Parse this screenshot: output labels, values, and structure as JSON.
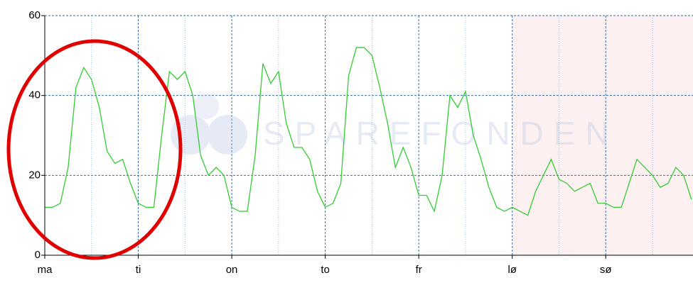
{
  "chart_data": {
    "type": "line",
    "watermark": "SPAREFONDEN",
    "x": [
      0,
      2,
      4,
      6,
      8,
      10,
      12,
      14,
      16,
      18,
      20,
      22,
      24,
      26,
      28,
      30,
      32,
      34,
      36,
      38,
      40,
      42,
      44,
      46,
      48,
      50,
      52,
      54,
      56,
      58,
      60,
      62,
      64,
      66,
      68,
      70,
      72,
      74,
      76,
      78,
      80,
      82,
      84,
      86,
      88,
      90,
      92,
      94,
      96,
      98,
      100,
      102,
      104,
      106,
      108,
      110,
      112,
      114,
      116,
      118,
      120,
      122,
      124,
      126,
      128,
      130,
      132,
      134,
      136,
      138,
      140,
      142,
      144,
      146,
      148,
      150,
      152,
      154,
      156,
      158,
      160,
      162,
      164,
      166
    ],
    "series": [
      {
        "color": "#33cc33",
        "values": [
          12,
          12,
          13,
          22,
          42,
          47,
          44,
          37,
          26,
          23,
          24,
          18,
          13,
          12,
          12,
          30,
          46,
          44,
          46,
          40,
          25,
          20,
          22,
          20,
          12,
          11,
          11,
          25,
          48,
          43,
          46,
          33,
          27,
          27,
          24,
          16,
          12,
          13,
          18,
          45,
          52,
          52,
          50,
          42,
          33,
          22,
          27,
          22,
          15,
          15,
          11,
          20,
          40,
          37,
          41,
          30,
          24,
          17,
          12,
          11,
          12,
          11,
          10,
          16,
          20,
          24,
          19,
          18,
          16,
          17,
          18,
          13,
          13,
          12,
          12,
          18,
          24,
          22,
          20,
          17,
          18,
          22,
          20,
          14
        ]
      }
    ],
    "xlim": [
      0,
      166.4
    ],
    "xticks": [
      {
        "value": 0,
        "label": "ma"
      },
      {
        "value": 24,
        "label": "ti"
      },
      {
        "value": 48,
        "label": "on"
      },
      {
        "value": 72,
        "label": "to"
      },
      {
        "value": 96,
        "label": "fr"
      },
      {
        "value": 120,
        "label": "lø"
      },
      {
        "value": 144,
        "label": "sø"
      }
    ],
    "xminor": [
      12,
      36,
      60,
      84,
      108,
      132,
      156
    ],
    "shade": {
      "from": 120,
      "to": 166.4,
      "color": "#fdf0f0"
    },
    "ylim": [
      0,
      60
    ],
    "yticks": [
      0,
      20,
      40,
      60
    ],
    "grid": true
  }
}
